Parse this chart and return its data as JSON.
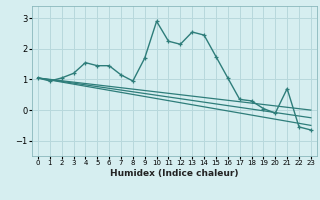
{
  "title": "",
  "xlabel": "Humidex (Indice chaleur)",
  "ylabel": "",
  "background_color": "#d6eef0",
  "grid_color": "#b8d8dc",
  "line_color": "#2e7d7a",
  "xlim": [
    -0.5,
    23.5
  ],
  "ylim": [
    -1.5,
    3.4
  ],
  "yticks": [
    -1,
    0,
    1,
    2,
    3
  ],
  "xticks": [
    0,
    1,
    2,
    3,
    4,
    5,
    6,
    7,
    8,
    9,
    10,
    11,
    12,
    13,
    14,
    15,
    16,
    17,
    18,
    19,
    20,
    21,
    22,
    23
  ],
  "main_series": {
    "x": [
      0,
      1,
      2,
      3,
      4,
      5,
      6,
      7,
      8,
      9,
      10,
      11,
      12,
      13,
      14,
      15,
      16,
      17,
      18,
      19,
      20,
      21,
      22,
      23
    ],
    "y": [
      1.05,
      0.95,
      1.05,
      1.2,
      1.55,
      1.45,
      1.45,
      1.15,
      0.95,
      1.7,
      2.9,
      2.25,
      2.15,
      2.55,
      2.45,
      1.75,
      1.05,
      0.35,
      0.3,
      0.05,
      -0.1,
      0.7,
      -0.55,
      -0.65
    ]
  },
  "linear_series_1": {
    "x": [
      0,
      23
    ],
    "y": [
      1.05,
      -0.5
    ]
  },
  "linear_series_2": {
    "x": [
      0,
      23
    ],
    "y": [
      1.05,
      -0.25
    ]
  },
  "linear_series_3": {
    "x": [
      0,
      23
    ],
    "y": [
      1.05,
      0.0
    ]
  }
}
